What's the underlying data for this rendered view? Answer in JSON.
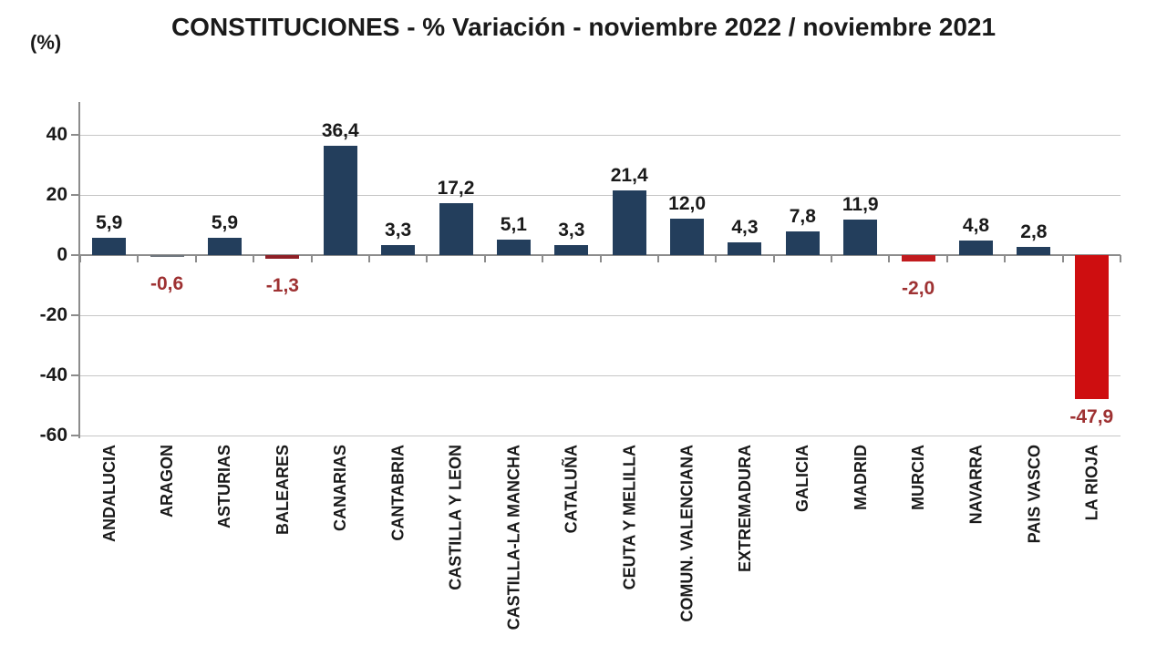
{
  "chart_data": {
    "type": "bar",
    "title": "CONSTITUCIONES - % Variación - noviembre 2022 / noviembre 2021",
    "ylabel": "(%)",
    "xlabel": "",
    "categories": [
      "ANDALUCIA",
      "ARAGON",
      "ASTURIAS",
      "BALEARES",
      "CANARIAS",
      "CANTABRIA",
      "CASTILLA Y LEON",
      "CASTILLA-LA MANCHA",
      "CATALUÑA",
      "CEUTA Y MELILLA",
      "COMUN. VALENCIANA",
      "EXTREMADURA",
      "GALICIA",
      "MADRID",
      "MURCIA",
      "NAVARRA",
      "PAIS VASCO",
      "LA RIOJA"
    ],
    "values": [
      5.9,
      -0.6,
      5.9,
      -1.3,
      36.4,
      3.3,
      17.2,
      5.1,
      3.3,
      21.4,
      12.0,
      4.3,
      7.8,
      11.9,
      -2.0,
      4.8,
      2.8,
      -47.9
    ],
    "value_labels": [
      "5,9",
      "-0,6",
      "5,9",
      "-1,3",
      "36,4",
      "3,3",
      "17,2",
      "5,1",
      "3,3",
      "21,4",
      "12,0",
      "4,3",
      "7,8",
      "11,9",
      "-2,0",
      "4,8",
      "2,8",
      "-47,9"
    ],
    "bar_colors": [
      "#233E5C",
      "#6F767D",
      "#233E5C",
      "#8E1F26",
      "#233E5C",
      "#233E5C",
      "#233E5C",
      "#233E5C",
      "#233E5C",
      "#233E5C",
      "#233E5C",
      "#233E5C",
      "#233E5C",
      "#233E5C",
      "#C11B1E",
      "#233E5C",
      "#233E5C",
      "#CE0E10"
    ],
    "ylim": [
      -60,
      50
    ],
    "yticks": [
      40,
      20,
      0,
      -20,
      -40,
      -60
    ],
    "ytick_labels": [
      "40",
      "20",
      "0",
      "-20",
      "-40",
      "-60"
    ],
    "grid": "horizontal",
    "legend": "none",
    "colors": {
      "positive_bar": "#233E5C",
      "negative_bar_strong": "#CE0E10",
      "value_label_positive": "#1a1a1a",
      "value_label_negative": "#9E3132",
      "gridline": "#c6c6c6",
      "axis": "#8c8c8c",
      "text": "#1a1a1a"
    }
  }
}
